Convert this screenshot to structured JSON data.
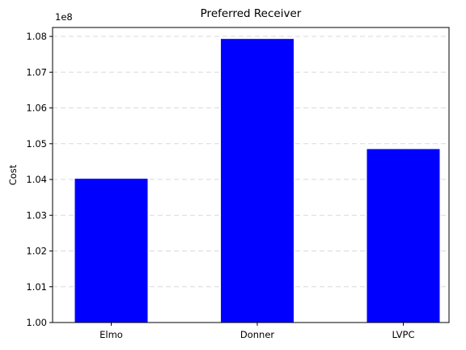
{
  "chart_data": {
    "type": "bar",
    "title": "Preferred Receiver",
    "xlabel": "",
    "ylabel": "Cost",
    "categories": [
      "Elmo",
      "Donner",
      "LVPC"
    ],
    "values": [
      104020000,
      107930000,
      104850000
    ],
    "ylim": [
      100000000,
      108250000
    ],
    "yticks": [
      100000000,
      101000000,
      102000000,
      103000000,
      104000000,
      105000000,
      106000000,
      107000000,
      108000000
    ],
    "ytick_labels": [
      "1.00",
      "1.01",
      "1.02",
      "1.03",
      "1.04",
      "1.05",
      "1.06",
      "1.07",
      "1.08"
    ],
    "offset_label": "1e8",
    "bar_color": "#0000ff",
    "grid": "y-dashed"
  }
}
